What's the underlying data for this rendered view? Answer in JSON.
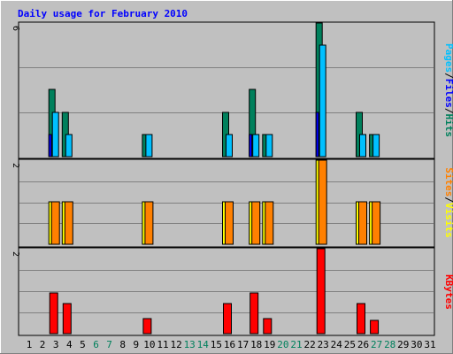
{
  "chart_data": {
    "type": "bar",
    "title": "Daily usage for February 2010",
    "categories": [
      "1",
      "2",
      "3",
      "4",
      "5",
      "6",
      "7",
      "8",
      "9",
      "10",
      "11",
      "12",
      "13",
      "14",
      "15",
      "16",
      "17",
      "18",
      "19",
      "20",
      "21",
      "22",
      "23",
      "24",
      "25",
      "26",
      "27",
      "28",
      "29",
      "30",
      "31"
    ],
    "weekend_days": [
      "6",
      "7",
      "13",
      "14",
      "20",
      "21",
      "27",
      "28"
    ],
    "legend_top": [
      {
        "label": "Hits",
        "color": "#00805c"
      },
      {
        "label": "/",
        "color": "#000000"
      },
      {
        "label": "Files",
        "color": "#0000ff"
      },
      {
        "label": "/",
        "color": "#000000"
      },
      {
        "label": "Pages",
        "color": "#00c0ff"
      }
    ],
    "legend_middle": [
      {
        "label": "Visits",
        "color": "#ffff00"
      },
      {
        "label": "/",
        "color": "#000000"
      },
      {
        "label": "Sites",
        "color": "#ff8000"
      }
    ],
    "legend_bottom": [
      {
        "label": "KBytes",
        "color": "#ff0000"
      }
    ],
    "panels": [
      {
        "name": "hits-files-pages",
        "max_label": "6",
        "ylim": [
          0,
          6
        ],
        "series": [
          {
            "name": "Hits",
            "color": "#00805c",
            "values": [
              0,
              0,
              3,
              2,
              0,
              0,
              0,
              0,
              0,
              1,
              0,
              0,
              0,
              0,
              0,
              2,
              0,
              3,
              1,
              0,
              0,
              0,
              6,
              0,
              0,
              2,
              1,
              0,
              0,
              0,
              0
            ]
          },
          {
            "name": "Files",
            "color": "#0000ff",
            "values": [
              0,
              0,
              1,
              0,
              0,
              0,
              0,
              0,
              0,
              0,
              0,
              0,
              0,
              0,
              0,
              0,
              0,
              1,
              0,
              0,
              0,
              0,
              2,
              0,
              0,
              0,
              0,
              0,
              0,
              0,
              0
            ]
          },
          {
            "name": "Pages",
            "color": "#00c0ff",
            "values": [
              0,
              0,
              2,
              1,
              0,
              0,
              0,
              0,
              0,
              1,
              0,
              0,
              0,
              0,
              0,
              1,
              0,
              1,
              1,
              0,
              0,
              0,
              5,
              0,
              0,
              1,
              1,
              0,
              0,
              0,
              0
            ]
          }
        ]
      },
      {
        "name": "visits-sites",
        "max_label": "2",
        "ylim": [
          0,
          2
        ],
        "series": [
          {
            "name": "Visits",
            "color": "#ffff00",
            "values": [
              0,
              0,
              1,
              1,
              0,
              0,
              0,
              0,
              0,
              1,
              0,
              0,
              0,
              0,
              0,
              1,
              0,
              1,
              1,
              0,
              0,
              0,
              2,
              0,
              0,
              1,
              1,
              0,
              0,
              0,
              0
            ]
          },
          {
            "name": "Sites",
            "color": "#ff8000",
            "values": [
              0,
              0,
              1,
              1,
              0,
              0,
              0,
              0,
              0,
              1,
              0,
              0,
              0,
              0,
              0,
              1,
              0,
              1,
              1,
              0,
              0,
              0,
              2,
              0,
              0,
              1,
              1,
              0,
              0,
              0,
              0
            ]
          }
        ]
      },
      {
        "name": "kbytes",
        "max_label": "2",
        "ylim": [
          0,
          2
        ],
        "series": [
          {
            "name": "KBytes",
            "color": "#ff0000",
            "values": [
              0,
              0,
              0.95,
              0.7,
              0,
              0,
              0,
              0,
              0,
              0.35,
              0,
              0,
              0,
              0,
              0,
              0.7,
              0,
              0.95,
              0.35,
              0,
              0,
              0,
              2,
              0,
              0,
              0.7,
              0.32,
              0,
              0,
              0,
              0
            ]
          }
        ]
      }
    ]
  }
}
